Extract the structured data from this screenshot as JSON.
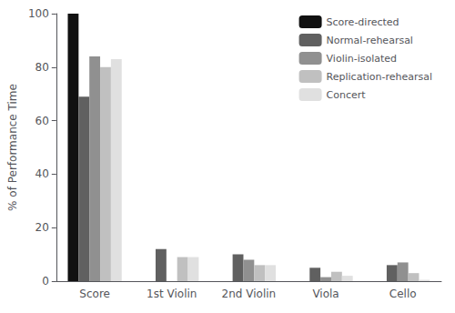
{
  "chart_data": {
    "type": "bar",
    "categories": [
      "Score",
      "1st Violin",
      "2nd Violin",
      "Viola",
      "Cello"
    ],
    "series": [
      {
        "name": "Score-directed",
        "color": "#111111",
        "values": [
          100,
          0,
          0,
          0,
          0
        ]
      },
      {
        "name": "Normal-rehearsal",
        "color": "#606060",
        "values": [
          69,
          12,
          10,
          5,
          6
        ]
      },
      {
        "name": "Violin-isolated",
        "color": "#909090",
        "values": [
          84,
          0,
          8,
          1.5,
          7
        ]
      },
      {
        "name": "Replication-rehearsal",
        "color": "#c0c0c0",
        "values": [
          80,
          9,
          6,
          3.5,
          3
        ]
      },
      {
        "name": "Concert",
        "color": "#e0e0e0",
        "values": [
          83,
          9,
          6,
          2,
          0.5
        ]
      }
    ],
    "ylabel": "% of Performance Time",
    "ylim": [
      0,
      100
    ],
    "yticks": [
      0,
      20,
      40,
      60,
      80,
      100
    ],
    "grid": false,
    "legend": "upper right"
  }
}
